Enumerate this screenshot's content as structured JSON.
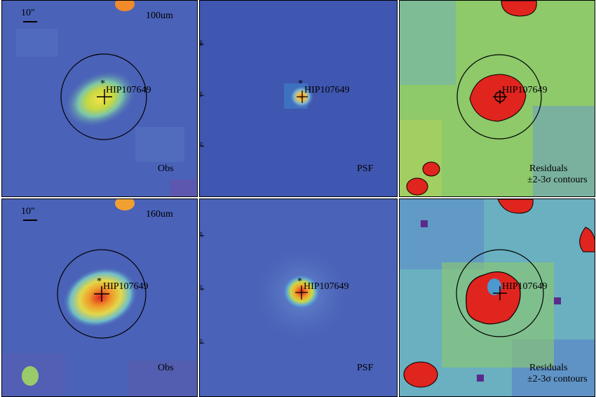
{
  "figure": {
    "source_name": "HIP107649",
    "scale_bar_label": "10\"",
    "rows": [
      {
        "band": "100um",
        "panels": [
          {
            "type": "obs",
            "label": "Obs"
          },
          {
            "type": "psf",
            "label": "PSF"
          },
          {
            "type": "residuals",
            "label": "Residuals",
            "sublabel": "±2-3σ contours"
          }
        ],
        "axis_ticks": [
          "60",
          "40",
          "20"
        ]
      },
      {
        "band": "160um",
        "panels": [
          {
            "type": "obs",
            "label": "Obs"
          },
          {
            "type": "psf",
            "label": "PSF"
          },
          {
            "type": "residuals",
            "label": "Residuals",
            "sublabel": "±2-3σ contours"
          }
        ],
        "axis_ticks": [
          "30",
          "20",
          "10"
        ]
      }
    ]
  },
  "colors": {
    "background_blue": "#4a62b8",
    "psf_blue": "#3f57b0",
    "core_red": "#e0241e",
    "core_yellow": "#f2d34a",
    "residual_green": "#8ec96a"
  }
}
